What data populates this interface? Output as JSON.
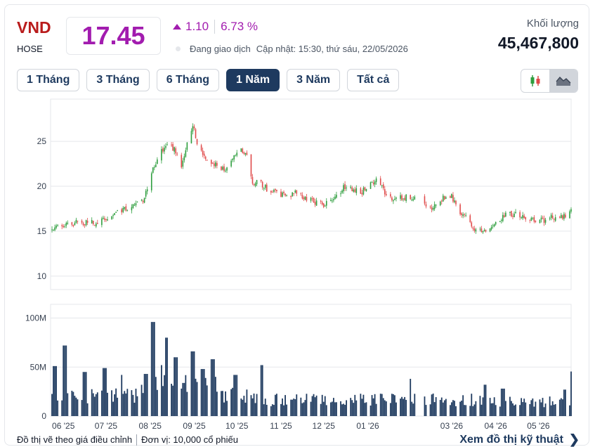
{
  "stock": {
    "ticker": "VND",
    "exchange": "HOSE",
    "price": "17.45",
    "change": "1.10",
    "change_pct": "6.73 %",
    "status": "Đang giao dịch",
    "updated": "Cập nhật: 15:30, thứ sáu, 22/05/2026",
    "volume_label": "Khối lượng",
    "volume": "45,467,800"
  },
  "range_buttons": [
    "1 Tháng",
    "3 Tháng",
    "6 Tháng",
    "1 Năm",
    "3 Năm",
    "Tất cả"
  ],
  "active_range": "1 Năm",
  "chart_toggle": [
    {
      "icon": "candlestick-icon",
      "active": false
    },
    {
      "icon": "area-chart-icon",
      "active": true
    }
  ],
  "colors": {
    "up": "#2e9e3e",
    "down": "#e04a4a",
    "volume": "#1e3a5f",
    "accent": "#a21caf",
    "brand": "#1e3a5f"
  },
  "footer": {
    "note": "Đồ thị vẽ theo giá điều chỉnh",
    "unit": "Đơn vị: 10,000 cổ phiếu",
    "link": "Xem đồ thị kỹ thuật"
  },
  "chart_data": [
    {
      "type": "candlestick",
      "title": "",
      "y_ticks": [
        "25",
        "20",
        "15",
        "10"
      ],
      "ylim": [
        8.5,
        29.7
      ],
      "grid": true,
      "x_ticks": [
        {
          "label": "06 '25",
          "day": 9
        },
        {
          "label": "07 '25",
          "day": 39
        },
        {
          "label": "08 '25",
          "day": 70
        },
        {
          "label": "09 '25",
          "day": 101
        },
        {
          "label": "10 '25",
          "day": 131
        },
        {
          "label": "11 '25",
          "day": 162
        },
        {
          "label": "12 '25",
          "day": 192
        },
        {
          "label": "01 '26",
          "day": 223
        },
        {
          "label": "03 '26",
          "day": 282
        },
        {
          "label": "04 '26",
          "day": 313
        },
        {
          "label": "05 '26",
          "day": 343
        }
      ],
      "x_range_days": [
        0,
        366
      ],
      "close_anchors": [
        [
          0,
          15.1
        ],
        [
          9,
          15.6
        ],
        [
          20,
          16.0
        ],
        [
          32,
          15.9
        ],
        [
          39,
          16.5
        ],
        [
          50,
          17.3
        ],
        [
          62,
          18.2
        ],
        [
          66,
          18.5
        ],
        [
          70,
          21.2
        ],
        [
          76,
          23.5
        ],
        [
          82,
          24.8
        ],
        [
          88,
          24.0
        ],
        [
          91,
          21.8
        ],
        [
          97,
          25.5
        ],
        [
          100,
          27.0
        ],
        [
          104,
          24.0
        ],
        [
          110,
          23.0
        ],
        [
          118,
          22.3
        ],
        [
          124,
          21.8
        ],
        [
          128,
          22.8
        ],
        [
          132,
          24.2
        ],
        [
          138,
          23.5
        ],
        [
          142,
          20.2
        ],
        [
          146,
          20.5
        ],
        [
          152,
          19.7
        ],
        [
          160,
          19.3
        ],
        [
          166,
          18.7
        ],
        [
          172,
          19.4
        ],
        [
          178,
          18.7
        ],
        [
          186,
          18.2
        ],
        [
          192,
          17.9
        ],
        [
          200,
          19.0
        ],
        [
          206,
          19.8
        ],
        [
          212,
          19.7
        ],
        [
          218,
          19.2
        ],
        [
          226,
          20.4
        ],
        [
          230,
          21.0
        ],
        [
          236,
          18.9
        ],
        [
          242,
          18.7
        ],
        [
          250,
          18.8
        ],
        [
          258,
          18.4
        ],
        [
          264,
          17.6
        ],
        [
          270,
          17.8
        ],
        [
          276,
          18.8
        ],
        [
          282,
          18.9
        ],
        [
          287,
          16.9
        ],
        [
          292,
          16.7
        ],
        [
          298,
          15.4
        ],
        [
          304,
          14.7
        ],
        [
          310,
          15.4
        ],
        [
          316,
          16.3
        ],
        [
          322,
          17.0
        ],
        [
          330,
          16.8
        ],
        [
          338,
          16.4
        ],
        [
          346,
          16.2
        ],
        [
          354,
          16.6
        ],
        [
          362,
          16.6
        ],
        [
          366,
          17.45
        ]
      ]
    },
    {
      "type": "bar",
      "title": "",
      "y_ticks": [
        "100M",
        "50M",
        "0"
      ],
      "ylim": [
        0,
        114
      ],
      "grid": true,
      "unit": "M",
      "last_value": 45.47,
      "peaks": [
        {
          "day": 3,
          "value": 51
        },
        {
          "day": 10,
          "value": 72
        },
        {
          "day": 24,
          "value": 45
        },
        {
          "day": 38,
          "value": 49
        },
        {
          "day": 49,
          "value": 42
        },
        {
          "day": 67,
          "value": 43
        },
        {
          "day": 72,
          "value": 96
        },
        {
          "day": 77,
          "value": 52
        },
        {
          "day": 82,
          "value": 80
        },
        {
          "day": 88,
          "value": 60
        },
        {
          "day": 100,
          "value": 66
        },
        {
          "day": 107,
          "value": 48
        },
        {
          "day": 114,
          "value": 58
        },
        {
          "day": 130,
          "value": 42
        },
        {
          "day": 148,
          "value": 52
        },
        {
          "day": 252,
          "value": 38
        },
        {
          "day": 306,
          "value": 32
        },
        {
          "day": 318,
          "value": 28
        },
        {
          "day": 362,
          "value": 27
        }
      ]
    }
  ]
}
